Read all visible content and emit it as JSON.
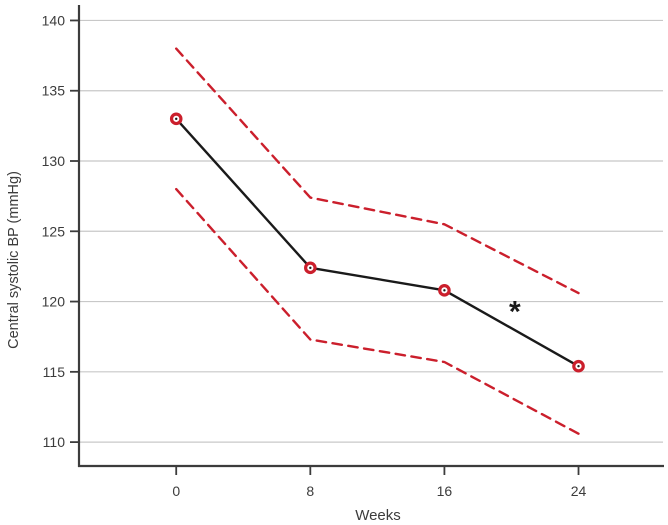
{
  "colors": {
    "mean_line": "#1a1a1a",
    "ci_red": "#cb1f2c",
    "marker_ring": "#cb1f2c",
    "marker_fill": "#ffffff",
    "marker_center_dot": "#1a1a1a",
    "grid": "#c8c8c8",
    "axis": "#3c3c3c",
    "tick_text": "#3c3c3c",
    "annotation": "#1a1a1a",
    "background": "#ffffff"
  },
  "chart_data": {
    "type": "line",
    "title": "",
    "xlabel": "Weeks",
    "ylabel": "Central systolic BP (mmHg)",
    "x": [
      0,
      8,
      16,
      24
    ],
    "xticks": [
      0,
      8,
      16,
      24
    ],
    "yticks": [
      110,
      115,
      120,
      125,
      130,
      135,
      140
    ],
    "xlim": [
      -5.8,
      29.1
    ],
    "ylim": [
      108.3,
      141.1
    ],
    "grid": "horizontal",
    "legend": "none",
    "series": [
      {
        "name": "mean-central-systolic-bp",
        "style": "solid",
        "color": "#1a1a1a",
        "marker": "open-red-circle-with-black-center-dot",
        "values": [
          133,
          122.4,
          120.8,
          115.4
        ]
      },
      {
        "name": "upper-dashed-bound",
        "style": "dashed",
        "color": "#cb1f2c",
        "marker": "none",
        "values": [
          138,
          127.4,
          125.5,
          120.6
        ]
      },
      {
        "name": "lower-dashed-bound",
        "style": "dashed",
        "color": "#cb1f2c",
        "marker": "none",
        "values": [
          128,
          117.3,
          115.7,
          110.6
        ]
      }
    ],
    "annotations": [
      {
        "text": "*",
        "x": 20.2,
        "y": 119.5
      }
    ]
  }
}
